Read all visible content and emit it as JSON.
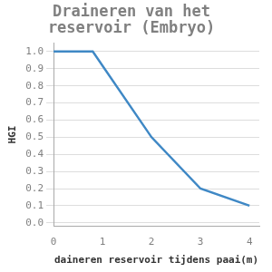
{
  "chart_data": {
    "type": "line",
    "title": "Draineren van het reservoir (Embryo)",
    "x_label": "daineren reservoir tijdens paai(m)",
    "y_label": "HGI",
    "x": [
      0,
      0.8,
      2,
      3,
      4
    ],
    "values": [
      1.0,
      1.0,
      0.5,
      0.2,
      0.1
    ],
    "color": "#3f88c5",
    "xlim": [
      0,
      4.2
    ],
    "xticks": [
      0,
      1,
      2,
      3,
      4
    ],
    "ylim": [
      -0.02,
      1.05
    ],
    "yticks": [
      {
        "value": 0,
        "label": "0.0"
      },
      0.1,
      0.2,
      0.3,
      0.4,
      0.5,
      0.6,
      0.7,
      0.8,
      0.9,
      {
        "value": 1,
        "label": "1.0"
      }
    ],
    "grid": "y"
  }
}
